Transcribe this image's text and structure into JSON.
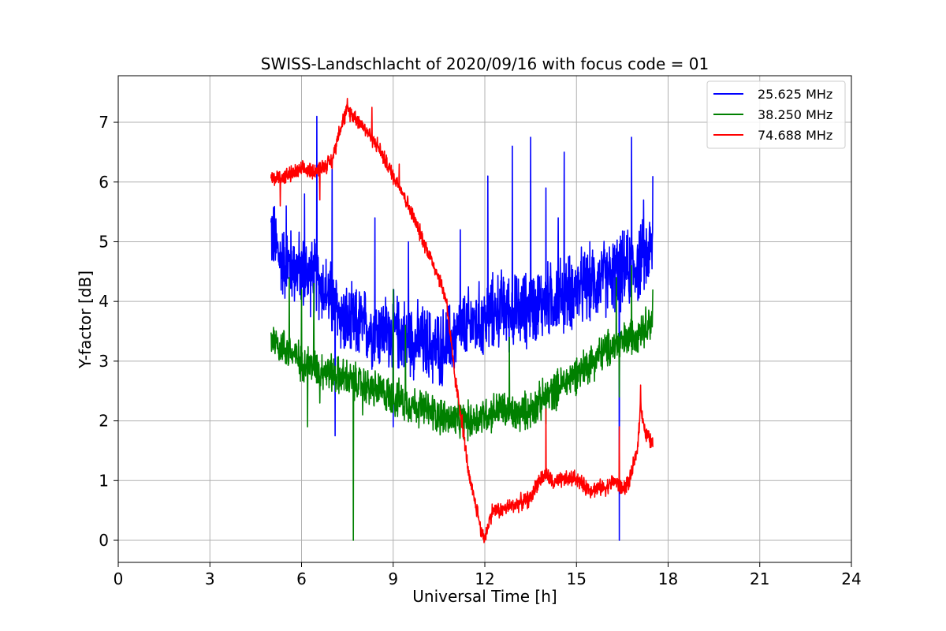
{
  "chart_data": {
    "type": "line",
    "title": "SWISS-Landschlacht of 2020/09/16 with focus code = 01",
    "xlabel": "Universal Time [h]",
    "ylabel": "Y-factor [dB]",
    "xlim": [
      0,
      24
    ],
    "ylim": [
      -0.37,
      7.78
    ],
    "xticks": [
      0,
      3,
      6,
      9,
      12,
      15,
      18,
      21,
      24
    ],
    "yticks": [
      0,
      1,
      2,
      3,
      4,
      5,
      6,
      7
    ],
    "grid": true,
    "legend_position": "top-right",
    "series": [
      {
        "name": "25.625 MHz",
        "color": "#0000ff",
        "points": [
          [
            5.0,
            5.2
          ],
          [
            5.3,
            4.7
          ],
          [
            5.7,
            4.6
          ],
          [
            6.0,
            4.5
          ],
          [
            6.5,
            4.4
          ],
          [
            7.0,
            4.0
          ],
          [
            7.5,
            3.6
          ],
          [
            8.0,
            3.6
          ],
          [
            8.5,
            3.5
          ],
          [
            9.0,
            3.5
          ],
          [
            9.5,
            3.4
          ],
          [
            10.0,
            3.3
          ],
          [
            10.5,
            3.2
          ],
          [
            11.0,
            3.4
          ],
          [
            11.5,
            3.6
          ],
          [
            12.0,
            3.7
          ],
          [
            12.5,
            3.9
          ],
          [
            13.0,
            3.8
          ],
          [
            13.5,
            3.9
          ],
          [
            14.0,
            4.0
          ],
          [
            14.5,
            4.1
          ],
          [
            15.0,
            4.2
          ],
          [
            15.5,
            4.3
          ],
          [
            16.0,
            4.4
          ],
          [
            16.5,
            4.5
          ],
          [
            17.0,
            4.6
          ],
          [
            17.5,
            4.9
          ]
        ],
        "spikes": [
          [
            5.5,
            5.6
          ],
          [
            6.1,
            5.8
          ],
          [
            6.5,
            7.1
          ],
          [
            7.0,
            6.4
          ],
          [
            7.1,
            1.75
          ],
          [
            8.4,
            5.4
          ],
          [
            9.0,
            1.9
          ],
          [
            9.5,
            5.0
          ],
          [
            11.2,
            5.2
          ],
          [
            12.1,
            6.1
          ],
          [
            12.9,
            6.6
          ],
          [
            13.5,
            6.75
          ],
          [
            14.0,
            5.9
          ],
          [
            14.4,
            5.4
          ],
          [
            14.6,
            6.5
          ],
          [
            16.4,
            0.0
          ],
          [
            16.8,
            6.75
          ],
          [
            17.2,
            5.7
          ],
          [
            17.5,
            6.1
          ]
        ]
      },
      {
        "name": "38.250 MHz",
        "color": "#008000",
        "points": [
          [
            5.0,
            3.4
          ],
          [
            5.5,
            3.2
          ],
          [
            6.0,
            3.0
          ],
          [
            6.5,
            2.9
          ],
          [
            7.0,
            2.8
          ],
          [
            7.5,
            2.7
          ],
          [
            8.0,
            2.6
          ],
          [
            8.5,
            2.5
          ],
          [
            9.0,
            2.4
          ],
          [
            9.5,
            2.3
          ],
          [
            10.0,
            2.2
          ],
          [
            10.5,
            2.1
          ],
          [
            11.0,
            2.0
          ],
          [
            11.5,
            2.0
          ],
          [
            12.0,
            2.1
          ],
          [
            12.5,
            2.2
          ],
          [
            13.0,
            2.1
          ],
          [
            13.5,
            2.2
          ],
          [
            14.0,
            2.4
          ],
          [
            14.5,
            2.6
          ],
          [
            15.0,
            2.8
          ],
          [
            15.5,
            3.0
          ],
          [
            16.0,
            3.2
          ],
          [
            16.5,
            3.3
          ],
          [
            17.0,
            3.5
          ],
          [
            17.5,
            3.7
          ]
        ],
        "spikes": [
          [
            5.6,
            4.4
          ],
          [
            6.0,
            4.2
          ],
          [
            6.4,
            4.3
          ],
          [
            6.2,
            1.9
          ],
          [
            6.6,
            2.3
          ],
          [
            7.7,
            0.0
          ],
          [
            8.0,
            2.1
          ],
          [
            9.0,
            4.2
          ],
          [
            9.4,
            3.6
          ],
          [
            12.8,
            3.4
          ],
          [
            14.0,
            1.95
          ],
          [
            16.3,
            4.4
          ],
          [
            16.4,
            2.4
          ],
          [
            16.8,
            4.6
          ],
          [
            17.5,
            4.2
          ]
        ]
      },
      {
        "name": "74.688 MHz",
        "color": "#ff0000",
        "points": [
          [
            5.0,
            6.05
          ],
          [
            5.5,
            6.1
          ],
          [
            6.0,
            6.2
          ],
          [
            6.5,
            6.2
          ],
          [
            7.0,
            6.35
          ],
          [
            7.25,
            6.9
          ],
          [
            7.5,
            7.2
          ],
          [
            7.75,
            7.1
          ],
          [
            8.0,
            6.95
          ],
          [
            8.5,
            6.6
          ],
          [
            9.0,
            6.1
          ],
          [
            9.25,
            5.9
          ],
          [
            9.5,
            5.6
          ],
          [
            10.0,
            5.0
          ],
          [
            10.5,
            4.4
          ],
          [
            10.75,
            4.0
          ],
          [
            11.0,
            2.8
          ],
          [
            11.25,
            2.0
          ],
          [
            11.5,
            1.0
          ],
          [
            11.75,
            0.5
          ],
          [
            11.9,
            0.1
          ],
          [
            12.0,
            0.05
          ],
          [
            12.25,
            0.5
          ],
          [
            12.5,
            0.5
          ],
          [
            13.0,
            0.6
          ],
          [
            13.5,
            0.7
          ],
          [
            13.75,
            1.0
          ],
          [
            14.0,
            1.1
          ],
          [
            14.25,
            0.95
          ],
          [
            14.5,
            1.0
          ],
          [
            15.0,
            1.05
          ],
          [
            15.25,
            0.9
          ],
          [
            15.5,
            0.85
          ],
          [
            16.0,
            0.9
          ],
          [
            16.25,
            1.0
          ],
          [
            16.5,
            0.85
          ],
          [
            16.75,
            1.0
          ],
          [
            17.0,
            1.55
          ],
          [
            17.1,
            2.3
          ],
          [
            17.25,
            1.8
          ],
          [
            17.5,
            1.6
          ]
        ],
        "spikes": [
          [
            5.3,
            5.6
          ],
          [
            6.6,
            5.7
          ],
          [
            7.5,
            7.4
          ],
          [
            8.3,
            7.25
          ],
          [
            9.2,
            6.3
          ],
          [
            14.0,
            2.2
          ],
          [
            16.4,
            1.9
          ],
          [
            17.1,
            2.6
          ]
        ]
      }
    ]
  }
}
